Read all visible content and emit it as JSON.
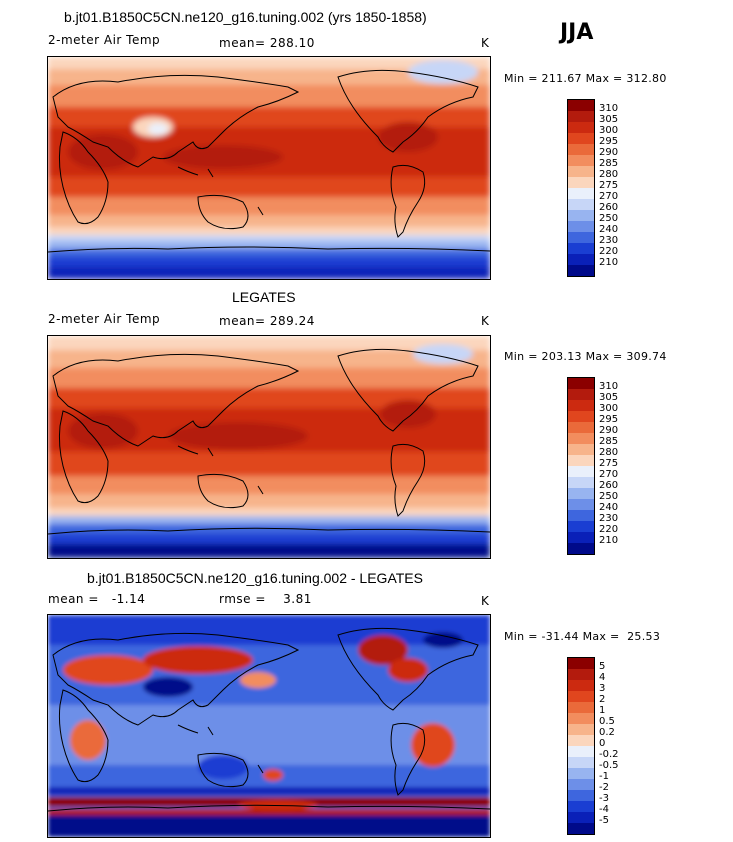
{
  "season": "JJA",
  "panels": [
    {
      "title": "b.jt01.B1850C5CN.ne120_g16.tuning.002 (yrs 1850-1858)",
      "left_label": "2-meter Air Temp",
      "center_label": "mean= 288.10",
      "right_label": "K",
      "minmax": "Min = 211.67 Max = 312.80",
      "colorbar": {
        "labels": [
          "310",
          "305",
          "300",
          "295",
          "290",
          "285",
          "280",
          "275",
          "270",
          "260",
          "250",
          "240",
          "230",
          "220",
          "210"
        ],
        "colors": [
          "#8b0000",
          "#b31b0d",
          "#cc2a10",
          "#e0461e",
          "#ea6a3a",
          "#f28d5e",
          "#f7b48b",
          "#fbd6bd",
          "#eaf0fb",
          "#c7d6f7",
          "#98b4f0",
          "#6d8fe8",
          "#3e66de",
          "#1a3ed2",
          "#0a20b8",
          "#000a8a"
        ]
      }
    },
    {
      "title": "LEGATES",
      "left_label": "2-meter Air Temp",
      "center_label": "mean= 289.24",
      "right_label": "K",
      "minmax": "Min = 203.13 Max = 309.74",
      "colorbar": {
        "labels": [
          "310",
          "305",
          "300",
          "295",
          "290",
          "285",
          "280",
          "275",
          "270",
          "260",
          "250",
          "240",
          "230",
          "220",
          "210"
        ],
        "colors": [
          "#8b0000",
          "#b31b0d",
          "#cc2a10",
          "#e0461e",
          "#ea6a3a",
          "#f28d5e",
          "#f7b48b",
          "#fbd6bd",
          "#eaf0fb",
          "#c7d6f7",
          "#98b4f0",
          "#6d8fe8",
          "#3e66de",
          "#1a3ed2",
          "#0a20b8",
          "#000a8a"
        ]
      }
    },
    {
      "title": "b.jt01.B1850C5CN.ne120_g16.tuning.002 - LEGATES",
      "left_label": "mean =   -1.14",
      "center_label": "rmse =    3.81",
      "right_label": "K",
      "minmax": "Min = -31.44 Max =  25.53",
      "colorbar": {
        "labels": [
          "5",
          "4",
          "3",
          "2",
          "1",
          "0.5",
          "0.2",
          "0",
          "-0.2",
          "-0.5",
          "-1",
          "-2",
          "-3",
          "-4",
          "-5"
        ],
        "colors": [
          "#8b0000",
          "#b31b0d",
          "#cc2a10",
          "#e0461e",
          "#ea6a3a",
          "#f28d5e",
          "#f7b48b",
          "#fbd6bd",
          "#eaf0fb",
          "#c7d6f7",
          "#98b4f0",
          "#6d8fe8",
          "#3e66de",
          "#1a3ed2",
          "#0a20b8",
          "#000a8a"
        ]
      }
    }
  ]
}
